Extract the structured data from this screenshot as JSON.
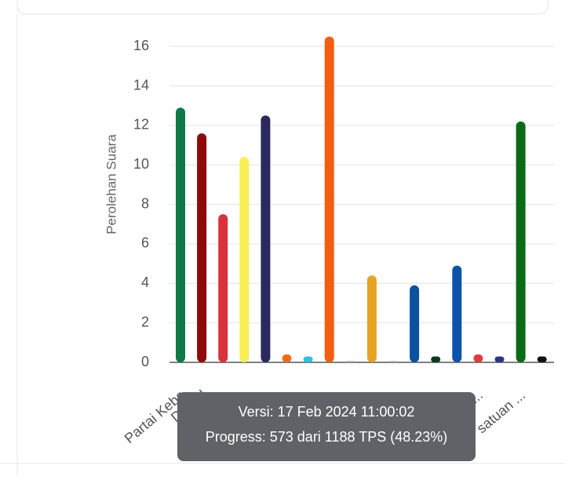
{
  "chart_data": {
    "type": "bar",
    "y_label": "Perolehan Suara",
    "categories": [
      "Partai Keba",
      "Demol",
      null,
      null,
      null,
      null,
      null,
      null,
      null,
      null,
      null,
      null,
      null,
      null,
      "...",
      null,
      "satuan ...",
      null
    ],
    "values": [
      12.9,
      11.6,
      7.5,
      10.4,
      12.5,
      0.4,
      0.3,
      16.5,
      0,
      4.4,
      0,
      3.9,
      0.3,
      4.9,
      0.4,
      0.3,
      12.2,
      0.3
    ],
    "colors": [
      "#0e7a48",
      "#8e0a0a",
      "#d8323a",
      "#f7ef55",
      "#29295f",
      "#f26b1d",
      "#2bc4dd",
      "#f35d10",
      "#9e9e9e",
      "#e8a323",
      "#9e9e9e",
      "#0c50a1",
      "#0c3b1c",
      "#0b53a9",
      "#e23a3a",
      "#2c3683",
      "#0b6a16",
      "#111111"
    ],
    "ylim": [
      0,
      17
    ],
    "yticks": [
      0,
      2,
      4,
      6,
      8,
      10,
      12,
      14,
      16
    ],
    "grid": true,
    "tooltip": {
      "line1": "Versi: 17 Feb 2024 11:00:02",
      "line2": "Progress: 573 dari 1188 TPS (48.23%)"
    }
  }
}
